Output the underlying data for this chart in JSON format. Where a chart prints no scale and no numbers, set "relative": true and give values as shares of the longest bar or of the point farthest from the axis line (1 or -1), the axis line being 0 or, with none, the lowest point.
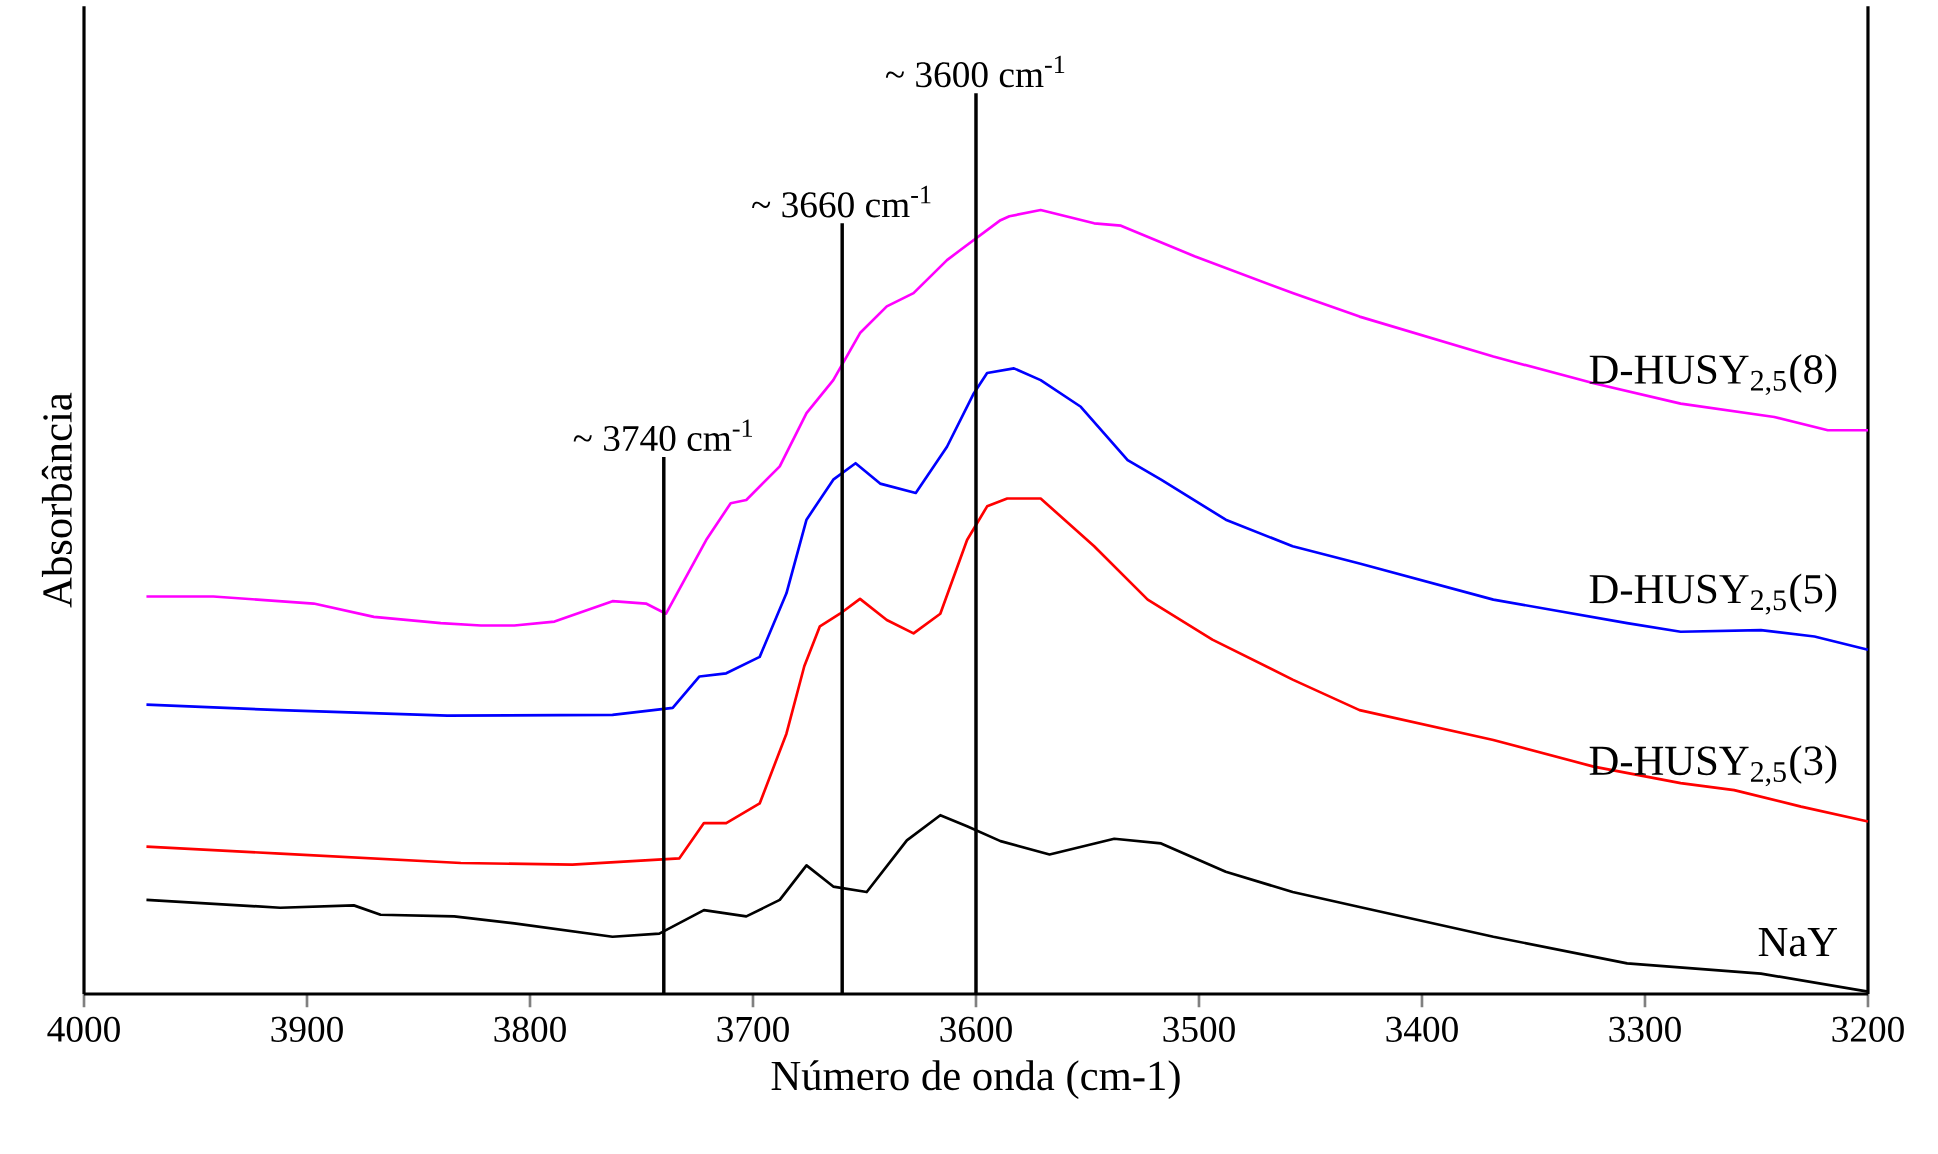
{
  "chart_data": {
    "type": "line",
    "relative": true,
    "xlabel": "Número de onda (cm-1)",
    "ylabel": "Absorbância",
    "xlim": [
      4000,
      3200
    ],
    "xticks": [
      4000,
      3900,
      3800,
      3700,
      3600,
      3500,
      3400,
      3300,
      3200
    ],
    "series": [
      {
        "name": "D-HUSY$_{2,5}$(8)",
        "color": "#ff00ff",
        "x": [
          3972,
          3942,
          3897,
          3870,
          3840,
          3822,
          3807,
          3789,
          3763,
          3748,
          3739,
          3721,
          3710,
          3703,
          3688,
          3676,
          3664,
          3652,
          3640,
          3628,
          3613,
          3607,
          3589,
          3585,
          3571,
          3547,
          3535,
          3502,
          3458,
          3428,
          3368,
          3323,
          3284,
          3242,
          3218,
          3200
        ],
        "values": [
          0.507,
          0.507,
          0.498,
          0.481,
          0.473,
          0.47,
          0.47,
          0.475,
          0.501,
          0.498,
          0.485,
          0.579,
          0.626,
          0.63,
          0.673,
          0.741,
          0.783,
          0.843,
          0.877,
          0.894,
          0.936,
          0.949,
          0.987,
          0.992,
          1.0,
          0.983,
          0.98,
          0.941,
          0.894,
          0.864,
          0.813,
          0.779,
          0.753,
          0.736,
          0.719,
          0.719
        ]
      },
      {
        "name": "D-HUSY$_{2,5}$(5)",
        "color": "#0000ff",
        "x": [
          3972,
          3912,
          3837,
          3763,
          3736,
          3724,
          3712,
          3697,
          3685,
          3676,
          3664,
          3654,
          3643,
          3627,
          3613,
          3601,
          3595,
          3583,
          3571,
          3553,
          3532,
          3517,
          3488,
          3458,
          3428,
          3368,
          3308,
          3284,
          3248,
          3224,
          3200
        ],
        "values": [
          0.369,
          0.362,
          0.355,
          0.356,
          0.365,
          0.405,
          0.409,
          0.43,
          0.511,
          0.605,
          0.656,
          0.677,
          0.651,
          0.639,
          0.698,
          0.766,
          0.792,
          0.798,
          0.783,
          0.749,
          0.681,
          0.656,
          0.605,
          0.571,
          0.549,
          0.503,
          0.473,
          0.462,
          0.464,
          0.456,
          0.439
        ]
      },
      {
        "name": "D-HUSY$_{2,5}$(3)",
        "color": "#ff0000",
        "x": [
          3972,
          3912,
          3831,
          3781,
          3733,
          3722,
          3712,
          3697,
          3685,
          3677,
          3670,
          3661,
          3652,
          3640,
          3628,
          3616,
          3604,
          3595,
          3586,
          3571,
          3547,
          3523,
          3494,
          3458,
          3428,
          3368,
          3323,
          3284,
          3260,
          3230,
          3200
        ],
        "values": [
          0.188,
          0.179,
          0.167,
          0.165,
          0.173,
          0.218,
          0.218,
          0.243,
          0.332,
          0.418,
          0.469,
          0.485,
          0.504,
          0.477,
          0.46,
          0.485,
          0.579,
          0.622,
          0.632,
          0.632,
          0.571,
          0.503,
          0.452,
          0.401,
          0.362,
          0.324,
          0.29,
          0.269,
          0.26,
          0.239,
          0.22
        ]
      },
      {
        "name": "NaY",
        "color": "#000000",
        "x": [
          3972,
          3912,
          3879,
          3867,
          3834,
          3807,
          3763,
          3742,
          3722,
          3703,
          3688,
          3676,
          3664,
          3649,
          3631,
          3616,
          3604,
          3589,
          3567,
          3538,
          3517,
          3488,
          3458,
          3428,
          3368,
          3308,
          3248,
          3200
        ],
        "values": [
          0.12,
          0.11,
          0.113,
          0.101,
          0.099,
          0.09,
          0.073,
          0.077,
          0.107,
          0.099,
          0.12,
          0.164,
          0.137,
          0.13,
          0.196,
          0.228,
          0.214,
          0.195,
          0.178,
          0.198,
          0.192,
          0.156,
          0.13,
          0.111,
          0.073,
          0.039,
          0.026,
          0.003
        ]
      }
    ],
    "ref_lines": [
      {
        "axis": "x",
        "value": 3740,
        "label": "~ 3740 cm$^{-1}$",
        "color": "#000000"
      },
      {
        "axis": "x",
        "value": 3660,
        "label": "~ 3660 cm$^{-1}$",
        "color": "#000000"
      },
      {
        "axis": "x",
        "value": 3600,
        "label": "~ 3600 cm$^{-1}$",
        "color": "#000000"
      }
    ]
  }
}
